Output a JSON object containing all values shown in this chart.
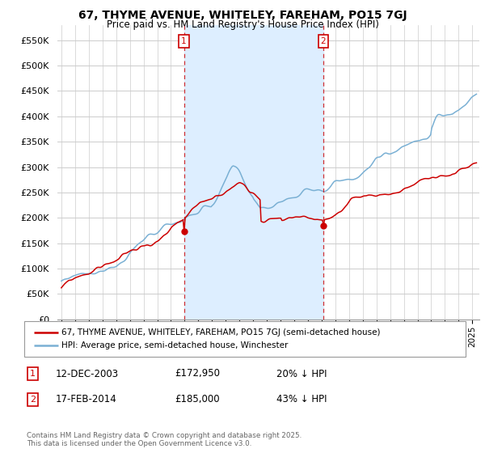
{
  "title": "67, THYME AVENUE, WHITELEY, FAREHAM, PO15 7GJ",
  "subtitle": "Price paid vs. HM Land Registry's House Price Index (HPI)",
  "ylim": [
    0,
    580000
  ],
  "yticks": [
    0,
    50000,
    100000,
    150000,
    200000,
    250000,
    300000,
    350000,
    400000,
    450000,
    500000,
    550000
  ],
  "xlim_start": 1994.7,
  "xlim_end": 2025.5,
  "marker1_x": 2003.95,
  "marker1_y": 172950,
  "marker2_x": 2014.12,
  "marker2_y": 185000,
  "legend1": "67, THYME AVENUE, WHITELEY, FAREHAM, PO15 7GJ (semi-detached house)",
  "legend2": "HPI: Average price, semi-detached house, Winchester",
  "ann1_label": "12-DEC-2003",
  "ann1_price": "£172,950",
  "ann1_hpi": "20% ↓ HPI",
  "ann2_label": "17-FEB-2014",
  "ann2_price": "£185,000",
  "ann2_hpi": "43% ↓ HPI",
  "copyright": "Contains HM Land Registry data © Crown copyright and database right 2025.\nThis data is licensed under the Open Government Licence v3.0.",
  "line_color_property": "#cc0000",
  "line_color_hpi": "#7ab0d4",
  "shade_color": "#ddeeff",
  "background_color": "#ffffff",
  "grid_color": "#cccccc"
}
